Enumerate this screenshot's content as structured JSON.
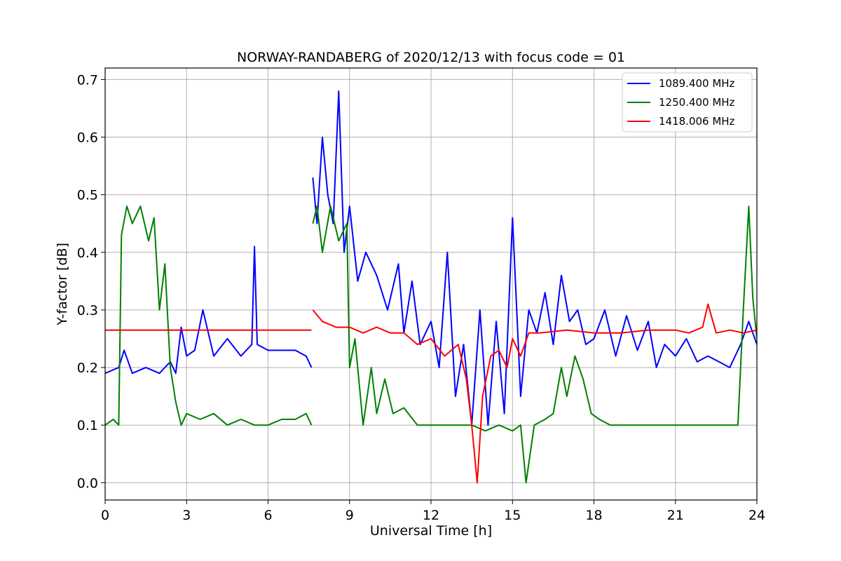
{
  "chart_data": {
    "type": "line",
    "title": "NORWAY-RANDABERG of 2020/12/13 with focus code = 01",
    "xlabel": "Universal Time [h]",
    "ylabel": "Y-factor [dB]",
    "xlim": [
      0,
      24
    ],
    "ylim": [
      -0.03,
      0.72
    ],
    "x_ticks": [
      0,
      3,
      6,
      9,
      12,
      15,
      18,
      21,
      24
    ],
    "x_tick_labels": [
      "0",
      "3",
      "6",
      "9",
      "12",
      "15",
      "18",
      "21",
      "24"
    ],
    "y_ticks": [
      0.0,
      0.1,
      0.2,
      0.3,
      0.4,
      0.5,
      0.6,
      0.7
    ],
    "y_tick_labels": [
      "0.0",
      "0.1",
      "0.2",
      "0.3",
      "0.4",
      "0.5",
      "0.6",
      "0.7"
    ],
    "grid": true,
    "legend_position": "top-right",
    "series": [
      {
        "name": "1089.400 MHz",
        "color": "#0000ff",
        "segments": [
          {
            "x": [
              0.0,
              0.5,
              0.7,
              1.0,
              1.5,
              2.0,
              2.4,
              2.6,
              2.8,
              3.0,
              3.3,
              3.6,
              4.0,
              4.5,
              5.0,
              5.4,
              5.5,
              5.6,
              6.0,
              6.5,
              7.0,
              7.4,
              7.6
            ],
            "y": [
              0.19,
              0.2,
              0.23,
              0.19,
              0.2,
              0.19,
              0.21,
              0.19,
              0.27,
              0.22,
              0.23,
              0.3,
              0.22,
              0.25,
              0.22,
              0.24,
              0.41,
              0.24,
              0.23,
              0.23,
              0.23,
              0.22,
              0.2
            ]
          },
          {
            "x": [
              7.65,
              7.8,
              8.0,
              8.2,
              8.4,
              8.6,
              8.8,
              9.0,
              9.3,
              9.6,
              10.0,
              10.4,
              10.8,
              11.0,
              11.3,
              11.6,
              12.0,
              12.3,
              12.6,
              12.9,
              13.2,
              13.5,
              13.8,
              14.1,
              14.4,
              14.7,
              15.0,
              15.3,
              15.6,
              15.9,
              16.2,
              16.5,
              16.8,
              17.1,
              17.4,
              17.7,
              18.0,
              18.4,
              18.8,
              19.2,
              19.6,
              20.0,
              20.3,
              20.6,
              21.0,
              21.4,
              21.8,
              22.2,
              22.6,
              23.0,
              23.4,
              23.7,
              24.0
            ],
            "y": [
              0.53,
              0.45,
              0.6,
              0.5,
              0.45,
              0.68,
              0.4,
              0.48,
              0.35,
              0.4,
              0.36,
              0.3,
              0.38,
              0.26,
              0.35,
              0.24,
              0.28,
              0.2,
              0.4,
              0.15,
              0.24,
              0.1,
              0.3,
              0.1,
              0.28,
              0.12,
              0.46,
              0.15,
              0.3,
              0.26,
              0.33,
              0.24,
              0.36,
              0.28,
              0.3,
              0.24,
              0.25,
              0.3,
              0.22,
              0.29,
              0.23,
              0.28,
              0.2,
              0.24,
              0.22,
              0.25,
              0.21,
              0.22,
              0.21,
              0.2,
              0.24,
              0.28,
              0.24
            ]
          }
        ]
      },
      {
        "name": "1250.400 MHz",
        "color": "#008000",
        "segments": [
          {
            "x": [
              0.0,
              0.3,
              0.5,
              0.6,
              0.8,
              1.0,
              1.3,
              1.6,
              1.8,
              2.0,
              2.2,
              2.4,
              2.6,
              2.8,
              3.0,
              3.5,
              4.0,
              4.5,
              5.0,
              5.5,
              6.0,
              6.5,
              7.0,
              7.4,
              7.6
            ],
            "y": [
              0.1,
              0.11,
              0.1,
              0.43,
              0.48,
              0.45,
              0.48,
              0.42,
              0.46,
              0.3,
              0.38,
              0.2,
              0.14,
              0.1,
              0.12,
              0.11,
              0.12,
              0.1,
              0.11,
              0.1,
              0.1,
              0.11,
              0.11,
              0.12,
              0.1
            ]
          },
          {
            "x": [
              7.65,
              7.8,
              8.0,
              8.3,
              8.6,
              8.9,
              9.0,
              9.2,
              9.5,
              9.8,
              10.0,
              10.3,
              10.6,
              11.0,
              11.5,
              12.0,
              12.5,
              13.0,
              13.5,
              14.0,
              14.5,
              15.0,
              15.3,
              15.5,
              15.8,
              16.2,
              16.5,
              16.8,
              17.0,
              17.3,
              17.6,
              17.9,
              18.2,
              18.6,
              19.0,
              19.5,
              20.0,
              20.5,
              21.0,
              21.5,
              22.0,
              22.5,
              23.0,
              23.3,
              23.5,
              23.7,
              23.85,
              24.0
            ],
            "y": [
              0.45,
              0.48,
              0.4,
              0.48,
              0.42,
              0.45,
              0.2,
              0.25,
              0.1,
              0.2,
              0.12,
              0.18,
              0.12,
              0.13,
              0.1,
              0.1,
              0.1,
              0.1,
              0.1,
              0.09,
              0.1,
              0.09,
              0.1,
              0.0,
              0.1,
              0.11,
              0.12,
              0.2,
              0.15,
              0.22,
              0.18,
              0.12,
              0.11,
              0.1,
              0.1,
              0.1,
              0.1,
              0.1,
              0.1,
              0.1,
              0.1,
              0.1,
              0.1,
              0.1,
              0.3,
              0.48,
              0.32,
              0.25
            ]
          }
        ]
      },
      {
        "name": "1418.006 MHz",
        "color": "#ff0000",
        "segments": [
          {
            "x": [
              0.0,
              3.0,
              6.0,
              7.6
            ],
            "y": [
              0.265,
              0.265,
              0.265,
              0.265
            ]
          },
          {
            "x": [
              7.65,
              8.0,
              8.5,
              9.0,
              9.5,
              10.0,
              10.5,
              11.0,
              11.5,
              12.0,
              12.5,
              13.0,
              13.3,
              13.5,
              13.7,
              13.9,
              14.2,
              14.5,
              14.8,
              15.0,
              15.3,
              15.6,
              16.0,
              17.0,
              18.0,
              19.0,
              20.0,
              21.0,
              21.5,
              22.0,
              22.2,
              22.5,
              23.0,
              23.5,
              24.0
            ],
            "y": [
              0.3,
              0.28,
              0.27,
              0.27,
              0.26,
              0.27,
              0.26,
              0.26,
              0.24,
              0.25,
              0.22,
              0.24,
              0.18,
              0.1,
              0.0,
              0.15,
              0.22,
              0.23,
              0.2,
              0.25,
              0.22,
              0.26,
              0.26,
              0.265,
              0.26,
              0.26,
              0.265,
              0.265,
              0.26,
              0.27,
              0.31,
              0.26,
              0.265,
              0.26,
              0.265
            ]
          }
        ]
      }
    ]
  }
}
